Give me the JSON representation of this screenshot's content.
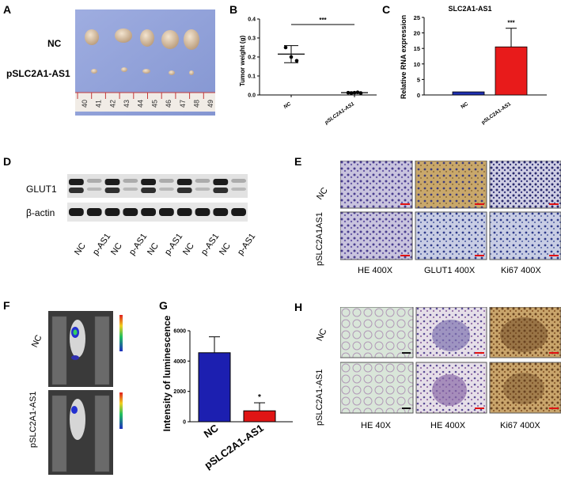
{
  "panels": {
    "a": {
      "letter": "A",
      "rows": [
        "NC",
        "pSLC2A1-AS1"
      ],
      "ruler_ticks": [
        "40",
        "41",
        "42",
        "43",
        "44",
        "45",
        "46",
        "47",
        "48",
        "49"
      ]
    },
    "b": {
      "letter": "B"
    },
    "c": {
      "letter": "C"
    },
    "d": {
      "letter": "D",
      "rows": [
        "GLUT1",
        "β-actin"
      ],
      "lanes": [
        "NC",
        "p-AS1",
        "NC",
        "p-AS1",
        "NC",
        "p-AS1",
        "NC",
        "p-AS1",
        "NC",
        "p-AS1"
      ]
    },
    "e": {
      "letter": "E",
      "rows": [
        "NC",
        "pSLC2A1AS1"
      ],
      "cols": [
        "HE  400X",
        "GLUT1 400X",
        "Ki67  400X"
      ]
    },
    "f": {
      "letter": "F",
      "rows": [
        "NC",
        "pSLC2A1-AS1"
      ]
    },
    "g": {
      "letter": "G"
    },
    "h": {
      "letter": "H",
      "rows": [
        "NC",
        "pSLC2A1-AS1"
      ],
      "cols": [
        "HE  40X",
        "HE 400X",
        "Ki67  400X"
      ]
    }
  },
  "chart_data": [
    {
      "id": "B",
      "type": "scatter",
      "title": "",
      "xlabel": "",
      "ylabel": "Tumor weight (g)",
      "categories": [
        "NC",
        "pSLC2A1-AS1"
      ],
      "ylim": [
        0,
        0.4
      ],
      "yticks": [
        "0.0",
        "0.1",
        "0.2",
        "0.3",
        "0.4"
      ],
      "points": [
        [
          0.25,
          0.2,
          0.18
        ],
        [
          0.012,
          0.01,
          0.012,
          0.014,
          0.01
        ]
      ],
      "mean": [
        0.215,
        0.012
      ],
      "err": [
        0.045,
        0.004
      ],
      "significance": "***"
    },
    {
      "id": "C",
      "type": "bar",
      "title": "SLC2A1-AS1",
      "xlabel": "",
      "ylabel": "Relative RNA expression",
      "categories": [
        "NC",
        "pSLC2A1-AS1"
      ],
      "values": [
        1,
        15.5
      ],
      "err": [
        0,
        6
      ],
      "ylim": [
        0,
        25
      ],
      "yticks": [
        "0",
        "5",
        "10",
        "15",
        "20",
        "25"
      ],
      "colors": [
        "#1f2fb0",
        "#e81b1b"
      ],
      "significance": "***"
    },
    {
      "id": "G",
      "type": "bar",
      "title": "",
      "xlabel": "",
      "ylabel": "Intensity of luminescence",
      "categories": [
        "NC",
        "pSLC2A1-AS1"
      ],
      "values": [
        4550,
        720
      ],
      "err": [
        1050,
        530
      ],
      "ylim": [
        0,
        6000
      ],
      "yticks": [
        "0",
        "2000",
        "4000",
        "6000"
      ],
      "colors": [
        "#1c1fb0",
        "#e01515"
      ],
      "significance": "*"
    }
  ]
}
